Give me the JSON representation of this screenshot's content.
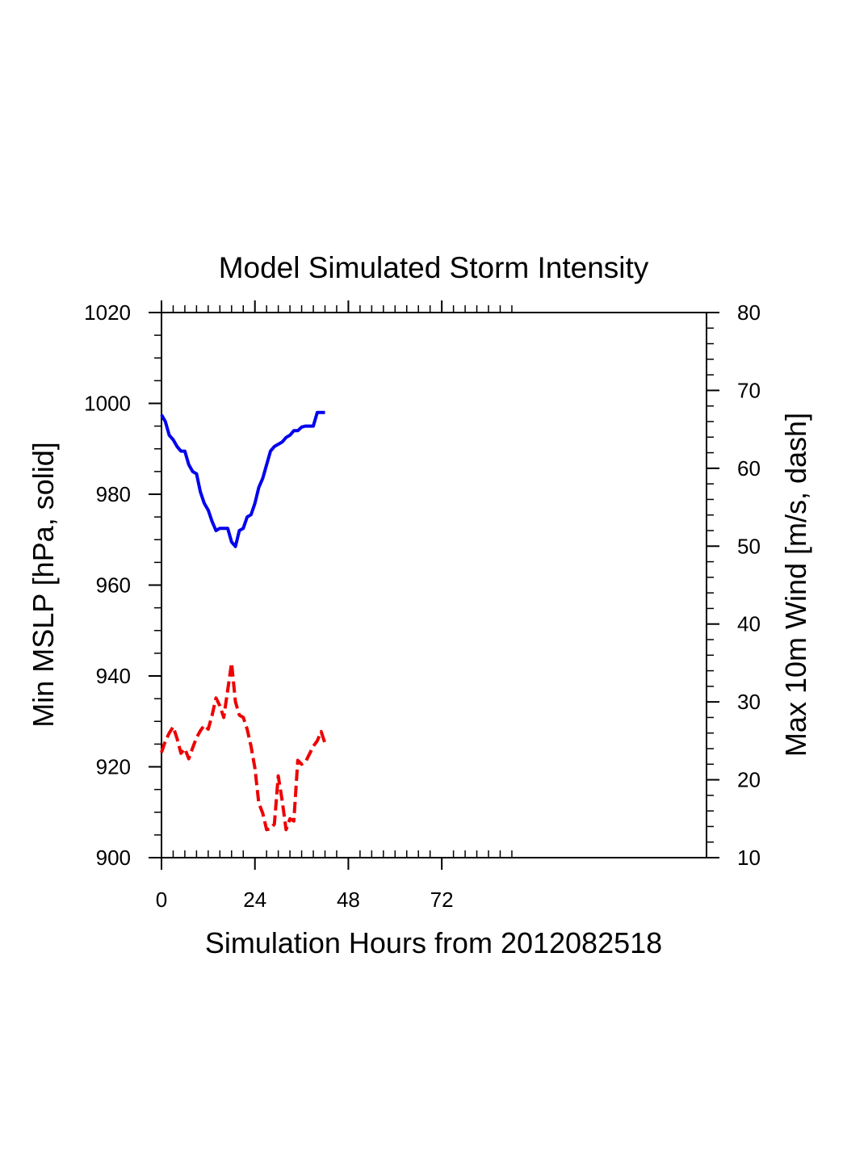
{
  "chart_data": {
    "type": "line",
    "title": "Model Simulated Storm Intensity",
    "xlabel": "Simulation Hours from 2012082518",
    "ylabel_left": "Min MSLP  [hPa, solid]",
    "ylabel_right": "Max 10m Wind  [m/s, dash]",
    "xlim": [
      0,
      140
    ],
    "x_ticks": [
      0,
      24,
      48,
      72
    ],
    "x_tick_labels": [
      "0",
      "24",
      "48",
      "72"
    ],
    "ylim_left": [
      900,
      1020
    ],
    "y_ticks_left": [
      900,
      920,
      940,
      960,
      980,
      1000,
      1020
    ],
    "y_tick_labels_left": [
      "900",
      "920",
      "940",
      "960",
      "980",
      "1000",
      "1020"
    ],
    "ylim_right": [
      10,
      80
    ],
    "y_ticks_right": [
      10,
      20,
      30,
      40,
      50,
      60,
      70,
      80
    ],
    "y_tick_labels_right": [
      "10",
      "20",
      "30",
      "40",
      "50",
      "60",
      "70",
      "80"
    ],
    "grid": false,
    "series": [
      {
        "axis": "left",
        "style": "solid",
        "color": "#0000ee",
        "x": [
          0,
          1,
          2,
          3,
          4,
          5,
          6,
          7,
          8,
          9,
          10,
          11,
          12,
          13,
          14,
          15,
          16,
          17,
          18,
          19,
          20,
          21,
          22,
          23,
          24,
          25,
          26,
          27,
          28,
          29,
          30,
          31,
          32,
          33,
          34,
          35,
          36,
          37,
          38,
          39,
          40,
          41,
          42
        ],
        "values": [
          997.5,
          996,
          993,
          992,
          990.5,
          989.5,
          989.5,
          986.5,
          985,
          984.5,
          980.5,
          978,
          976.5,
          974,
          972,
          972.5,
          972.5,
          972.5,
          969.5,
          968.5,
          972,
          972.5,
          975,
          975.5,
          978,
          981.5,
          983.5,
          986.5,
          989.5,
          990.5,
          991,
          991.5,
          992.5,
          993,
          994,
          994,
          994.8,
          995,
          995,
          995,
          998,
          998,
          998
        ]
      },
      {
        "axis": "right",
        "style": "dash",
        "color": "#ee0000",
        "x": [
          0,
          1,
          2,
          3,
          4,
          5,
          6,
          7,
          8,
          9,
          10,
          11,
          12,
          13,
          14,
          15,
          16,
          17,
          18,
          19,
          20,
          21,
          22,
          23,
          24,
          25,
          26,
          27,
          28,
          29,
          30,
          31,
          32,
          33,
          34,
          35,
          36,
          37,
          38,
          39,
          40,
          41,
          42
        ],
        "values": [
          23.5,
          25,
          26,
          26.8,
          25.3,
          23.4,
          24,
          22.7,
          24.1,
          25.4,
          26.3,
          27,
          26.5,
          28.3,
          30.5,
          29.5,
          28,
          31.5,
          35,
          30,
          28.3,
          28,
          26.5,
          24.3,
          21.5,
          17,
          15.7,
          13.6,
          13.7,
          14.3,
          20.5,
          17.3,
          13.6,
          15,
          14.7,
          22.5,
          22,
          22.3,
          23.3,
          24.3,
          25,
          26.2,
          24.7
        ]
      }
    ]
  }
}
